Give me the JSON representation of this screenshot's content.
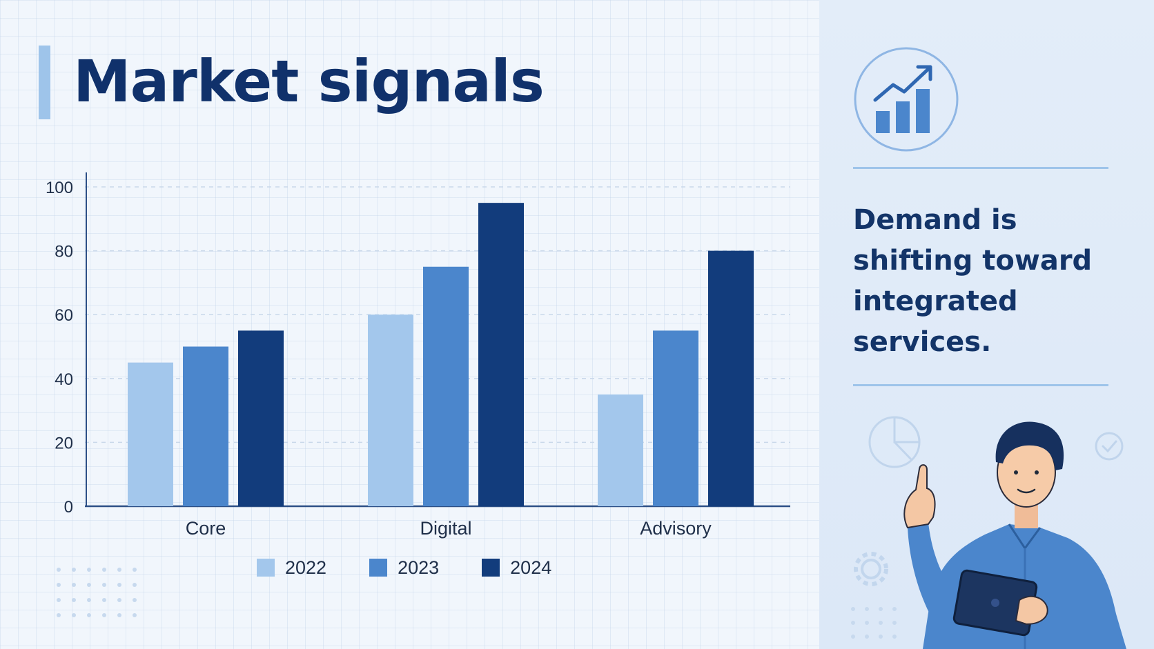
{
  "title": "Market signals",
  "insight": "Demand is shifting toward integrated services.",
  "colors": {
    "series_2022": "#a3c7ec",
    "series_2023": "#4b86cc",
    "series_2024": "#123c7c",
    "title": "#10316b",
    "accent": "#9ec4ea"
  },
  "icons": [
    "bar-chart-growth-icon",
    "pie-chart-icon",
    "check-circle-icon",
    "gear-icon"
  ],
  "chart_data": {
    "type": "bar",
    "title": "",
    "xlabel": "",
    "ylabel": "",
    "categories": [
      "Core",
      "Digital",
      "Advisory"
    ],
    "series": [
      {
        "name": "2022",
        "values": [
          45,
          60,
          35
        ]
      },
      {
        "name": "2023",
        "values": [
          50,
          75,
          55
        ]
      },
      {
        "name": "2024",
        "values": [
          55,
          95,
          80
        ]
      }
    ],
    "ylim": [
      0,
      100
    ],
    "yticks": [
      "0",
      "20",
      "40",
      "60",
      "80",
      "100"
    ],
    "grid": true,
    "legend_position": "bottom"
  }
}
